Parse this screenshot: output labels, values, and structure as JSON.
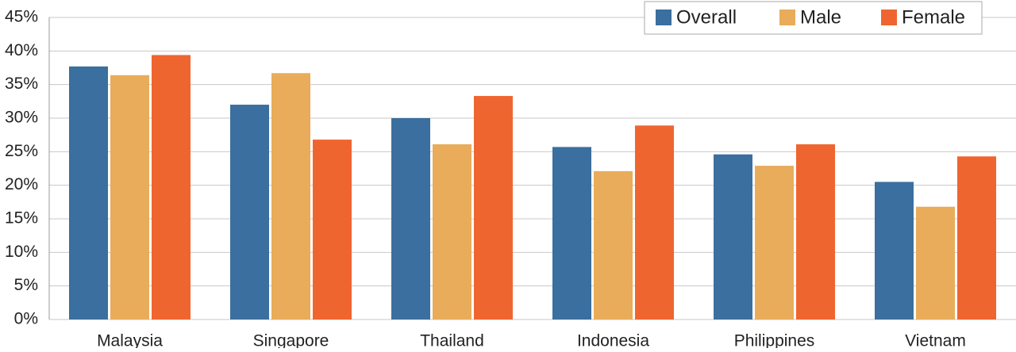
{
  "chart_data": {
    "type": "bar",
    "categories": [
      "Malaysia",
      "Singapore",
      "Thailand",
      "Indonesia",
      "Philippines",
      "Vietnam"
    ],
    "series": [
      {
        "name": "Overall",
        "color": "#3a6f9f",
        "values": [
          37.7,
          32.0,
          30.0,
          25.7,
          24.6,
          20.5
        ]
      },
      {
        "name": "Male",
        "color": "#e8ac5a",
        "values": [
          36.4,
          36.7,
          26.1,
          22.1,
          22.9,
          16.8
        ]
      },
      {
        "name": "Female",
        "color": "#ef6530",
        "values": [
          39.4,
          26.8,
          33.3,
          28.9,
          26.1,
          24.3
        ]
      }
    ],
    "ylim": [
      0,
      45
    ],
    "yticks": [
      {
        "value": 0,
        "label": "0%"
      },
      {
        "value": 5,
        "label": "5%"
      },
      {
        "value": 10,
        "label": "10%"
      },
      {
        "value": 15,
        "label": "15%"
      },
      {
        "value": 20,
        "label": "20%"
      },
      {
        "value": 25,
        "label": "25%"
      },
      {
        "value": 30,
        "label": "30%"
      },
      {
        "value": 35,
        "label": "35%"
      },
      {
        "value": 40,
        "label": "40%"
      },
      {
        "value": 45,
        "label": "45%"
      }
    ],
    "grid": true,
    "legend": "top-right"
  }
}
